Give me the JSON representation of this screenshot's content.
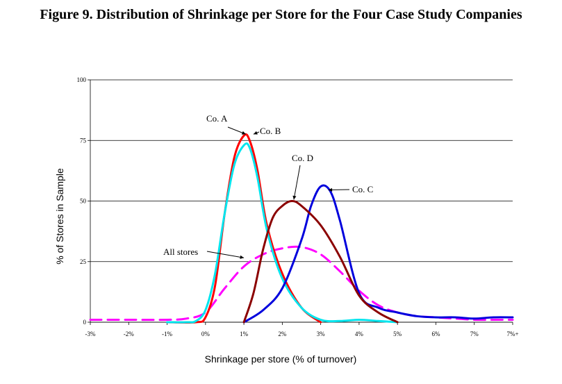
{
  "chart_data": {
    "type": "line",
    "title": "Figure 9. Distribution of Shrinkage per Store for the Four Case Study Companies",
    "xlabel": "Shrinkage per store (% of turnover)",
    "ylabel": "% of Stores in Sample",
    "xlim": [
      -3,
      8
    ],
    "ylim": [
      0,
      100
    ],
    "x_tick_values": [
      -3,
      -2,
      -1,
      0,
      1,
      2,
      3,
      4,
      5,
      6,
      7,
      8
    ],
    "x_tick_labels": [
      "-3%",
      "-2%",
      "-1%",
      "0%",
      "1%",
      "2%",
      "3%",
      "4%",
      "5%",
      "6%",
      "7%",
      "7%+"
    ],
    "y_tick_values": [
      0,
      25,
      50,
      75,
      100
    ],
    "y_tick_labels": [
      "0",
      "25",
      "50",
      "75",
      "100"
    ],
    "grid": "horizontal",
    "series": [
      {
        "name": "All stores",
        "color": "#ff00ff",
        "dash": "dashed",
        "x": [
          -3,
          -2,
          -1,
          -0.5,
          0,
          0.5,
          1,
          1.5,
          2,
          2.5,
          3,
          3.5,
          4,
          4.5,
          5,
          5.5,
          6,
          6.5,
          7,
          7.5,
          8
        ],
        "y": [
          1,
          1,
          1,
          1.5,
          4,
          14,
          23,
          28,
          30.5,
          31,
          28,
          21,
          13,
          7,
          4,
          2.5,
          2,
          1.5,
          1,
          1,
          1
        ]
      },
      {
        "name": "Co. A",
        "color": "#ff0000",
        "dash": "solid",
        "x": [
          -1,
          -0.25,
          0,
          0.25,
          0.5,
          0.75,
          1,
          1.15,
          1.35,
          1.6,
          2,
          2.5,
          3
        ],
        "y": [
          0,
          0,
          2,
          15,
          45,
          68,
          77,
          75,
          63,
          40,
          20,
          6,
          0
        ]
      },
      {
        "name": "Co. B",
        "color": "#00e5ee",
        "dash": "solid",
        "x": [
          -1,
          -0.5,
          -0.25,
          0,
          0.25,
          0.5,
          0.75,
          1,
          1.15,
          1.35,
          1.6,
          2,
          2.5,
          3,
          3.5,
          4,
          4.5,
          5
        ],
        "y": [
          0,
          0,
          0.5,
          5,
          20,
          45,
          65,
          73,
          72,
          60,
          38,
          18,
          6,
          1,
          0.5,
          1,
          0.5,
          0
        ]
      },
      {
        "name": "Co. C",
        "color": "#0000dd",
        "dash": "solid",
        "x": [
          1,
          1.5,
          2,
          2.5,
          2.75,
          3,
          3.25,
          3.5,
          4,
          4.5,
          5,
          5.5,
          6,
          6.5,
          7,
          7.5,
          8
        ],
        "y": [
          0,
          5,
          14,
          34,
          48,
          56,
          54,
          42,
          12,
          6,
          4,
          2.5,
          2,
          2,
          1.5,
          2,
          2
        ]
      },
      {
        "name": "Co. D",
        "color": "#8b0000",
        "dash": "solid",
        "x": [
          1,
          1.25,
          1.5,
          1.75,
          2,
          2.25,
          2.5,
          3,
          3.5,
          4,
          4.5,
          5
        ],
        "y": [
          0,
          12,
          30,
          43,
          48,
          50,
          48,
          40,
          27,
          11,
          4,
          0
        ]
      }
    ],
    "annotations": [
      {
        "text": "Co. A",
        "x": 1.05,
        "y": 77
      },
      {
        "text": "Co. B",
        "x": 1.25,
        "y": 77
      },
      {
        "text": "Co. D",
        "x": 2.3,
        "y": 50
      },
      {
        "text": "Co. C",
        "x": 3.2,
        "y": 54
      },
      {
        "text": "All stores",
        "x": 1.0,
        "y": 26
      }
    ]
  }
}
